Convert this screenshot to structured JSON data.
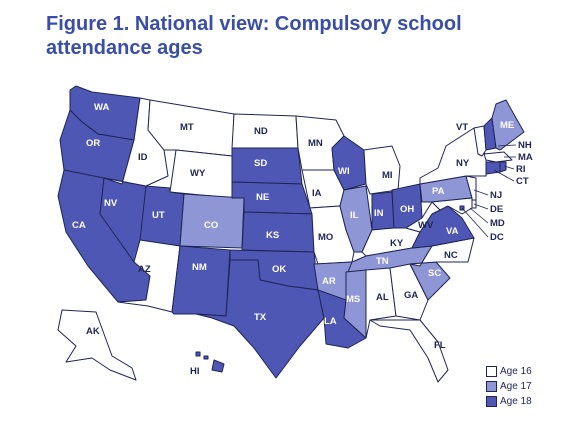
{
  "title": "Figure 1. National view: Compulsory school attendance ages",
  "colors": {
    "age16": "#ffffff",
    "age17": "#8e96d6",
    "age18": "#4e58b4",
    "outline": "#1e2555"
  },
  "legend": [
    {
      "label": "Age 16",
      "age": 16
    },
    {
      "label": "Age 17",
      "age": 17
    },
    {
      "label": "Age 18",
      "age": 18
    }
  ],
  "states": [
    {
      "abbr": "WA",
      "age": 18
    },
    {
      "abbr": "OR",
      "age": 18
    },
    {
      "abbr": "CA",
      "age": 18
    },
    {
      "abbr": "NV",
      "age": 18
    },
    {
      "abbr": "ID",
      "age": 16
    },
    {
      "abbr": "MT",
      "age": 16
    },
    {
      "abbr": "WY",
      "age": 16
    },
    {
      "abbr": "UT",
      "age": 18
    },
    {
      "abbr": "AZ",
      "age": 16
    },
    {
      "abbr": "CO",
      "age": 17
    },
    {
      "abbr": "NM",
      "age": 18
    },
    {
      "abbr": "ND",
      "age": 16
    },
    {
      "abbr": "SD",
      "age": 18
    },
    {
      "abbr": "NE",
      "age": 18
    },
    {
      "abbr": "KS",
      "age": 18
    },
    {
      "abbr": "OK",
      "age": 18
    },
    {
      "abbr": "TX",
      "age": 18
    },
    {
      "abbr": "MN",
      "age": 16
    },
    {
      "abbr": "IA",
      "age": 16
    },
    {
      "abbr": "MO",
      "age": 16
    },
    {
      "abbr": "AR",
      "age": 17
    },
    {
      "abbr": "LA",
      "age": 18
    },
    {
      "abbr": "WI",
      "age": 18
    },
    {
      "abbr": "IL",
      "age": 17
    },
    {
      "abbr": "MI",
      "age": 16
    },
    {
      "abbr": "IN",
      "age": 18
    },
    {
      "abbr": "OH",
      "age": 18
    },
    {
      "abbr": "KY",
      "age": 16
    },
    {
      "abbr": "TN",
      "age": 17
    },
    {
      "abbr": "MS",
      "age": 17
    },
    {
      "abbr": "AL",
      "age": 16
    },
    {
      "abbr": "GA",
      "age": 16
    },
    {
      "abbr": "FL",
      "age": 16
    },
    {
      "abbr": "SC",
      "age": 17
    },
    {
      "abbr": "NC",
      "age": 16
    },
    {
      "abbr": "VA",
      "age": 18
    },
    {
      "abbr": "WV",
      "age": 16
    },
    {
      "abbr": "PA",
      "age": 17
    },
    {
      "abbr": "NY",
      "age": 16
    },
    {
      "abbr": "VT",
      "age": 16
    },
    {
      "abbr": "NH",
      "age": 18
    },
    {
      "abbr": "ME",
      "age": 17
    },
    {
      "abbr": "MA",
      "age": 16
    },
    {
      "abbr": "RI",
      "age": 18
    },
    {
      "abbr": "CT",
      "age": 18
    },
    {
      "abbr": "NJ",
      "age": 16
    },
    {
      "abbr": "DE",
      "age": 16
    },
    {
      "abbr": "MD",
      "age": 16
    },
    {
      "abbr": "DC",
      "age": 18
    },
    {
      "abbr": "AK",
      "age": 16
    },
    {
      "abbr": "HI",
      "age": 18
    }
  ]
}
